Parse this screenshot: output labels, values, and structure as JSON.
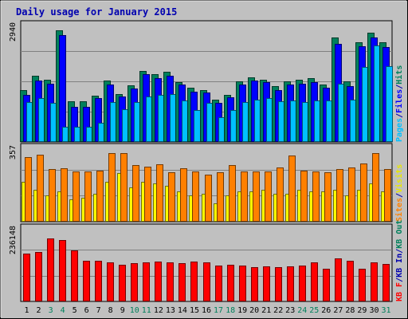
{
  "chart_data": {
    "type": "bar",
    "title": "Daily usage for January 2015",
    "categories": [
      "1",
      "2",
      "3",
      "4",
      "5",
      "6",
      "7",
      "8",
      "9",
      "10",
      "11",
      "12",
      "13",
      "14",
      "15",
      "16",
      "17",
      "18",
      "19",
      "20",
      "21",
      "22",
      "23",
      "24",
      "25",
      "26",
      "27",
      "28",
      "29",
      "30",
      "31"
    ],
    "weekend_days": [
      "3",
      "4",
      "10",
      "11",
      "17",
      "18",
      "24",
      "25",
      "31"
    ],
    "panels": [
      {
        "id": "hits-files-pages",
        "ymax": 2940,
        "ymax_label": "2940",
        "legend": [
          {
            "text": "Pages",
            "color": "#00c0ff"
          },
          {
            "text": "/",
            "color": "#0000b0"
          },
          {
            "text": "Files",
            "color": "#0000ff"
          },
          {
            "text": "/",
            "color": "#0000b0"
          },
          {
            "text": "Hits",
            "color": "#00805c"
          }
        ],
        "series": [
          {
            "name": "Hits",
            "color": "#00805c",
            "values": [
              1320,
              1700,
              1600,
              2860,
              1050,
              1050,
              1180,
              1580,
              1220,
              1450,
              1820,
              1740,
              1800,
              1540,
              1380,
              1320,
              1080,
              1210,
              1560,
              1660,
              1600,
              1420,
              1560,
              1600,
              1640,
              1460,
              2670,
              1550,
              2560,
              2800,
              2550
            ]
          },
          {
            "name": "Files",
            "color": "#0000ff",
            "values": [
              1200,
              1580,
              1500,
              2730,
              900,
              890,
              1120,
              1480,
              1160,
              1360,
              1730,
              1640,
              1700,
              1460,
              1290,
              1260,
              1000,
              1140,
              1480,
              1570,
              1540,
              1320,
              1480,
              1500,
              1540,
              1380,
              2520,
              1430,
              2450,
              2680,
              2430
            ]
          },
          {
            "name": "Pages",
            "color": "#00c0ff",
            "values": [
              1020,
              1130,
              1010,
              380,
              380,
              380,
              480,
              1030,
              830,
              1020,
              1160,
              1200,
              1220,
              1060,
              820,
              1000,
              640,
              820,
              1020,
              1080,
              1120,
              1040,
              1060,
              1020,
              1060,
              1070,
              1500,
              1080,
              1920,
              2480,
              1930
            ]
          }
        ]
      },
      {
        "id": "visits-sites",
        "ymax": 357,
        "ymax_label": "357",
        "legend": [
          {
            "text": "Sites",
            "color": "#ff8000"
          },
          {
            "text": "/",
            "color": "#0000b0"
          },
          {
            "text": "Visits",
            "color": "#e8e800"
          }
        ],
        "series": [
          {
            "name": "Visits",
            "color": "#ffff00",
            "values": [
              200,
              160,
              130,
              150,
              110,
              120,
              140,
              200,
              240,
              170,
              200,
              190,
              180,
              150,
              130,
              140,
              90,
              130,
              150,
              150,
              160,
              140,
              140,
              160,
              150,
              150,
              160,
              130,
              160,
              190,
              150
            ]
          },
          {
            "name": "Sites",
            "color": "#ff8000",
            "values": [
              320,
              335,
              260,
              265,
              250,
              250,
              255,
              340,
              340,
              280,
              275,
              285,
              245,
              265,
              250,
              235,
              245,
              280,
              250,
              250,
              250,
              270,
              330,
              255,
              250,
              245,
              260,
              270,
              290,
              340,
              260
            ]
          }
        ]
      },
      {
        "id": "kb",
        "ymax": 236148,
        "ymax_label": "236148",
        "legend": [
          {
            "text": "KB F",
            "color": "#ff0000"
          },
          {
            "text": "/",
            "color": "#0000b0"
          },
          {
            "text": "KB In",
            "color": "#0000b0"
          },
          {
            "text": "/",
            "color": "#0000b0"
          },
          {
            "text": "KB Out",
            "color": "#00805c"
          }
        ],
        "series": [
          {
            "name": "KB F",
            "color": "#ff0000",
            "values": [
              160000,
              165000,
              210000,
              205000,
              170000,
              135000,
              135000,
              129000,
              123000,
              128000,
              129000,
              133000,
              130000,
              128000,
              133000,
              129000,
              120000,
              123000,
              119000,
              115000,
              117000,
              114000,
              118000,
              120000,
              130000,
              108000,
              142000,
              135000,
              109000,
              130000,
              125000
            ]
          }
        ]
      }
    ]
  }
}
